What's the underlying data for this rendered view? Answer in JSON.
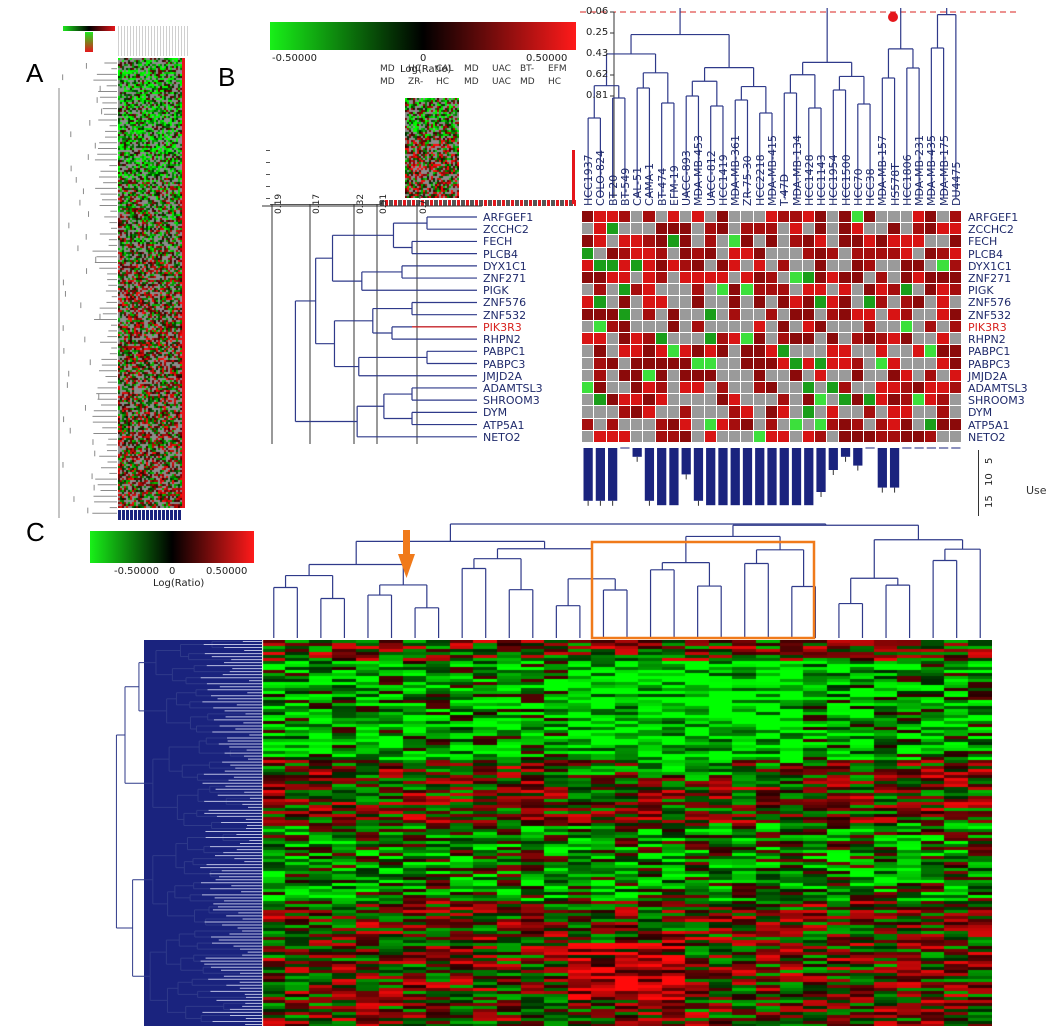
{
  "panels": {
    "a": "A",
    "b": "B",
    "c": "C"
  },
  "colorbar_b": {
    "min": "-0.50000",
    "mid": "0",
    "max": "0.50000",
    "label": "Log(Ratio)"
  },
  "colorbar_c": {
    "min": "-0.50000",
    "mid": "0",
    "max": "0.50000",
    "label": "Log(Ratio)"
  },
  "dendro_b_top_ticks": [
    "0.06",
    "0.25",
    "0.43",
    "0.62",
    "0.81"
  ],
  "dendro_b_left_ticks": [
    "0.19",
    "0.17",
    "0.32",
    "0.51",
    "0.77"
  ],
  "thumb_b_labels": [
    "MD",
    "HC",
    "CAL",
    "MD",
    "UAC",
    "BT-",
    "EFM",
    "MD",
    "ZR-",
    "HC",
    "MD",
    "UAC",
    "MD",
    "HC"
  ],
  "samples": [
    "HCC1937",
    "COLO-824",
    "BT-20",
    "BT-549",
    "CAL-51",
    "CAMA-1",
    "BT-474",
    "EFM-19",
    "UACC-893",
    "MDA-MB-453",
    "UACC-812",
    "HCC1419",
    "MDA-MB-361",
    "ZR-75-30",
    "HCC2218",
    "MDA-MB-415",
    "T-47D",
    "MDA-MB-134",
    "HCC1428",
    "HCC1143",
    "HCC1954",
    "HCC1500",
    "HCC70",
    "HCC38",
    "MDA-MB-157",
    "HS578T",
    "HCC1806",
    "MDA-MB-231",
    "MDA-MB-435",
    "MDA-MB-175",
    "DU4475"
  ],
  "genes": [
    "ARFGEF1",
    "ZCCHC2",
    "FECH",
    "PLCB4",
    "DYX1C1",
    "ZNF271",
    "PIGK",
    "ZNF576",
    "ZNF532",
    "PIK3R3",
    "RHPN2",
    "PABPC1",
    "PABPC3",
    "JMJD2A",
    "ADAMTSL3",
    "SHROOM3",
    "DYM",
    "ATP5A1",
    "NETO2"
  ],
  "highlight_gene": "PIK3R3",
  "bar_axis": {
    "ticks": [
      "5",
      "10",
      "15"
    ],
    "label": "Use"
  },
  "chart_data": {
    "type": "bar",
    "title": "",
    "ylabel": "Use",
    "yticks": [
      5,
      10,
      15
    ],
    "values": [
      12,
      12,
      12,
      0,
      2,
      12,
      13,
      13,
      6,
      12,
      13,
      13,
      13,
      13,
      13,
      13,
      13,
      13,
      13,
      10,
      5,
      2,
      4,
      0,
      9,
      9,
      0,
      0,
      0,
      0,
      0
    ]
  },
  "colors": {
    "red": "#e5161b",
    "green": "#1ee51e",
    "grey": "#9a9a9a",
    "navy": "#1a237e",
    "dendro": "#2f3a8a",
    "orange": "#f07a1a"
  }
}
